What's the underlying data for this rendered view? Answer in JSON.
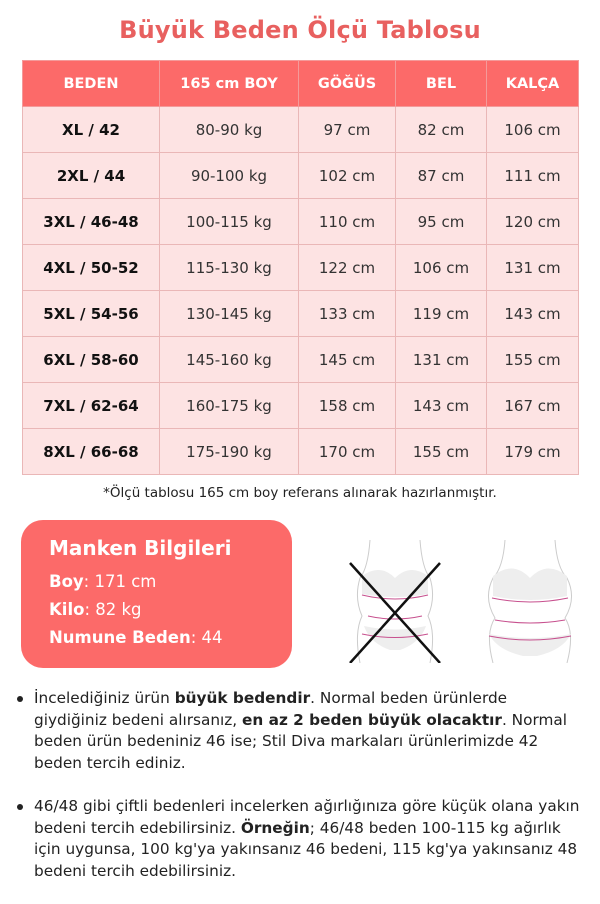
{
  "title": "Büyük Beden Ölçü Tablosu",
  "table": {
    "headers": [
      "BEDEN",
      "165 cm BOY",
      "GÖĞÜS",
      "BEL",
      "KALÇA"
    ],
    "rows": [
      [
        "XL / 42",
        "80-90 kg",
        "97 cm",
        "82 cm",
        "106 cm"
      ],
      [
        "2XL / 44",
        "90-100 kg",
        "102 cm",
        "87 cm",
        "111 cm"
      ],
      [
        "3XL / 46-48",
        "100-115 kg",
        "110 cm",
        "95 cm",
        "120 cm"
      ],
      [
        "4XL / 50-52",
        "115-130 kg",
        "122 cm",
        "106 cm",
        "131 cm"
      ],
      [
        "5XL / 54-56",
        "130-145 kg",
        "133 cm",
        "119 cm",
        "143 cm"
      ],
      [
        "6XL / 58-60",
        "145-160 kg",
        "145 cm",
        "131 cm",
        "155 cm"
      ],
      [
        "7XL / 62-64",
        "160-175 kg",
        "158 cm",
        "143 cm",
        "167 cm"
      ],
      [
        "8XL / 66-68",
        "175-190 kg",
        "170 cm",
        "155 cm",
        "179 cm"
      ]
    ]
  },
  "footnote": "*Ölçü tablosu 165 cm boy referans alınarak hazırlanmıştır.",
  "model": {
    "title": "Manken Bilgileri",
    "items": [
      {
        "label": "Boy",
        "value": ": 171 cm"
      },
      {
        "label": "Kilo",
        "value": ": 82 kg"
      },
      {
        "label": "Numune Beden",
        "value": ": 44"
      }
    ]
  },
  "figures": {
    "wrong_icon": "crossed-out-body-figure",
    "right_icon": "body-figure"
  },
  "colors": {
    "accent": "#fc6a69",
    "title": "#e8605f",
    "cell": "#fde3e3"
  },
  "bullets": [
    {
      "parts": [
        "İncelediğiniz ürün ",
        "büyük bedendir",
        ". Normal beden ürünlerde giydiğiniz bedeni alırsanız, ",
        "en az 2 beden büyük olacaktır",
        ". Normal beden ürün bedeniniz 46 ise; Stil Diva markaları ürünlerimizde 42 beden tercih ediniz."
      ]
    },
    {
      "parts": [
        "46/48 gibi çiftli bedenleri incelerken ağırlığınıza göre küçük olana yakın bedeni tercih edebilirsiniz. ",
        "Örneğin",
        "; 46/48 beden 100-115 kg ağırlık için uygunsa, 100 kg'ya yakınsanız 46 bedeni, 115 kg'ya yakınsanız 48 bedeni tercih edebilirsiniz."
      ]
    }
  ]
}
